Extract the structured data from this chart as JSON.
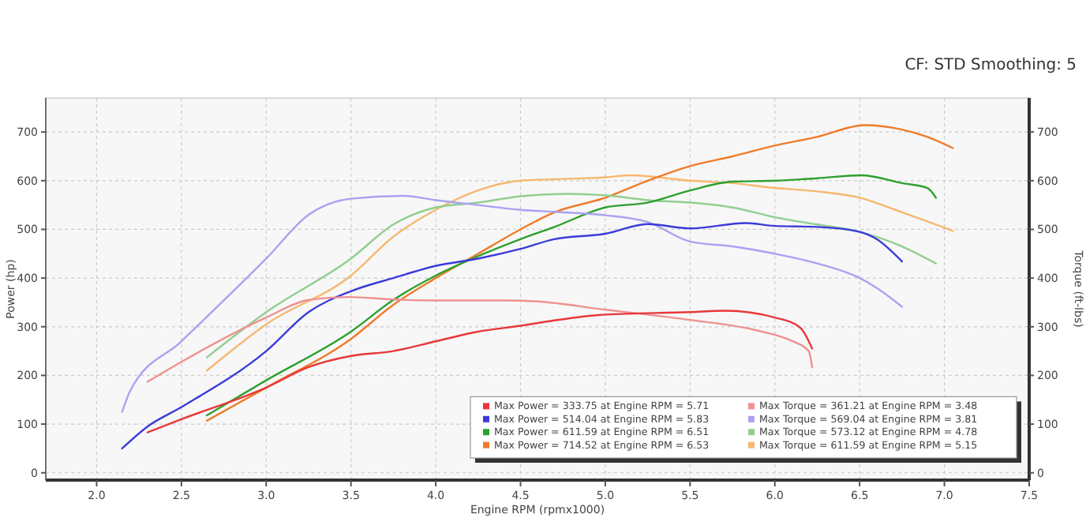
{
  "chart_data": {
    "type": "line",
    "xlabel": "Engine RPM (rpmx1000)",
    "ylabel": "Power (hp)",
    "y2label": "Torque (ft-lbs)",
    "annotations": [
      "CF: STD Smoothing: 5"
    ],
    "xlim": [
      1.7,
      7.5
    ],
    "xticks": [
      {
        "value": 2,
        "label": "2.0"
      },
      {
        "value": 2.5,
        "label": "2.5"
      },
      {
        "value": 3,
        "label": "3.0"
      },
      {
        "value": 3.5,
        "label": "3.5"
      },
      {
        "value": 4,
        "label": "4.0"
      },
      {
        "value": 4.5,
        "label": "4.5"
      },
      {
        "value": 5,
        "label": "5.0"
      },
      {
        "value": 5.5,
        "label": "5.5"
      },
      {
        "value": 6,
        "label": "6.0"
      },
      {
        "value": 6.5,
        "label": "6.5"
      },
      {
        "value": 7,
        "label": "7.0"
      },
      {
        "value": 7.5,
        "label": "7.5"
      }
    ],
    "ylim": [
      -15,
      770
    ],
    "yticks": [
      0,
      100,
      200,
      300,
      400,
      500,
      600,
      700
    ],
    "y2lim": [
      -15,
      770
    ],
    "y2ticks": [
      0,
      100,
      200,
      300,
      400,
      500,
      600,
      700
    ],
    "grid": true,
    "legend": "bottom right",
    "marker": "none",
    "line_style": "solid",
    "series": [
      {
        "name": "Max Power = 333.75 at Engine RPM = 5.71",
        "color": "#e8383a",
        "x": [
          2.3,
          2.5,
          3.0,
          3.25,
          3.5,
          3.75,
          4.0,
          4.25,
          4.5,
          4.7,
          5.0,
          5.5,
          5.71,
          6.0,
          6.15,
          6.22
        ],
        "values": [
          83,
          110,
          175,
          217,
          240,
          250,
          270,
          290,
          302,
          313,
          325,
          330,
          333,
          319,
          298,
          255
        ]
      },
      {
        "name": "Max Torque = 361.21 at Engine RPM = 3.48",
        "color": "#f09090",
        "x": [
          2.3,
          2.5,
          3.0,
          3.25,
          3.48,
          3.75,
          4.0,
          4.4,
          4.6,
          5.0,
          5.25,
          5.5,
          5.9,
          6.1,
          6.2,
          6.22
        ],
        "values": [
          187,
          228,
          319,
          355,
          361,
          356,
          354,
          354,
          352,
          335,
          325,
          314,
          292,
          271,
          250,
          217
        ]
      },
      {
        "name": "Max Power = 514.04 at Engine RPM = 5.83",
        "color": "#3b3bd9",
        "x": [
          2.15,
          2.3,
          2.5,
          3.0,
          3.25,
          3.5,
          3.75,
          4.0,
          4.25,
          4.5,
          4.7,
          5.0,
          5.25,
          5.5,
          5.83,
          6.0,
          6.25,
          6.5,
          6.6,
          6.75
        ],
        "values": [
          50,
          95,
          135,
          250,
          330,
          373,
          400,
          425,
          440,
          460,
          480,
          491,
          511,
          502,
          513,
          507,
          505,
          495,
          480,
          434
        ]
      },
      {
        "name": "Max Torque = 569.04 at Engine RPM = 3.81",
        "color": "#aaa2f0",
        "x": [
          2.15,
          2.2,
          2.5,
          3.0,
          3.25,
          3.5,
          3.81,
          4.0,
          4.25,
          4.5,
          4.7,
          5.0,
          5.25,
          5.5,
          5.75,
          6.0,
          6.25,
          6.5,
          6.6,
          6.75
        ],
        "values": [
          125,
          170,
          270,
          440,
          530,
          563,
          569,
          560,
          550,
          540,
          536,
          529,
          515,
          475,
          465,
          450,
          430,
          400,
          380,
          341
        ]
      },
      {
        "name": "Max Power = 611.59 at Engine RPM = 6.51",
        "color": "#2ea02e",
        "x": [
          2.65,
          3.0,
          3.5,
          3.75,
          4.0,
          4.25,
          4.5,
          4.7,
          5.0,
          5.25,
          5.5,
          5.75,
          6.0,
          6.25,
          6.51,
          6.75,
          6.9,
          6.95
        ],
        "values": [
          118,
          190,
          290,
          355,
          405,
          445,
          480,
          505,
          545,
          555,
          580,
          598,
          600,
          605,
          611,
          595,
          585,
          565
        ]
      },
      {
        "name": "Max Torque = 573.12 at Engine RPM = 4.78",
        "color": "#90cf90",
        "x": [
          2.65,
          3.0,
          3.5,
          3.75,
          4.0,
          4.25,
          4.5,
          4.78,
          5.0,
          5.25,
          5.5,
          5.75,
          6.0,
          6.25,
          6.5,
          6.75,
          6.95
        ],
        "values": [
          237,
          330,
          440,
          510,
          545,
          555,
          568,
          573,
          570,
          560,
          555,
          545,
          525,
          510,
          495,
          465,
          430
        ]
      },
      {
        "name": "Max Power = 714.52 at Engine RPM = 6.53",
        "color": "#f07b2a",
        "x": [
          2.65,
          3.0,
          3.5,
          3.75,
          4.0,
          4.25,
          4.5,
          4.7,
          5.0,
          5.25,
          5.5,
          5.75,
          6.0,
          6.25,
          6.53,
          6.75,
          6.9,
          7.05
        ],
        "values": [
          107,
          175,
          275,
          345,
          400,
          450,
          500,
          535,
          565,
          600,
          630,
          650,
          672,
          690,
          714,
          705,
          690,
          667
        ]
      },
      {
        "name": "Max Torque = 611.59 at Engine RPM = 5.15",
        "color": "#f5b870",
        "x": [
          2.65,
          3.0,
          3.5,
          3.75,
          4.0,
          4.25,
          4.5,
          4.7,
          5.0,
          5.15,
          5.5,
          5.75,
          6.0,
          6.25,
          6.5,
          6.75,
          7.05
        ],
        "values": [
          210,
          305,
          405,
          485,
          540,
          580,
          600,
          603,
          607,
          611,
          600,
          595,
          585,
          578,
          565,
          535,
          497
        ]
      }
    ]
  }
}
